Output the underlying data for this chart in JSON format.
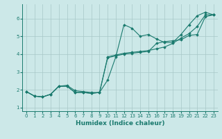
{
  "xlabel": "Humidex (Indice chaleur)",
  "x": [
    0,
    1,
    2,
    3,
    4,
    5,
    6,
    7,
    8,
    9,
    10,
    11,
    12,
    13,
    14,
    15,
    16,
    17,
    18,
    19,
    20,
    21,
    22,
    23
  ],
  "line1": [
    1.9,
    1.65,
    1.6,
    1.75,
    2.2,
    2.2,
    1.85,
    1.85,
    1.8,
    1.85,
    2.55,
    3.85,
    5.65,
    5.45,
    5.0,
    5.1,
    4.85,
    4.65,
    4.65,
    5.1,
    5.65,
    6.15,
    6.35,
    6.2
  ],
  "line2": [
    1.9,
    1.65,
    1.6,
    1.75,
    2.2,
    2.25,
    1.95,
    1.9,
    1.85,
    1.85,
    3.85,
    3.95,
    4.05,
    4.1,
    4.15,
    4.2,
    4.3,
    4.4,
    4.6,
    4.9,
    5.15,
    5.55,
    6.2,
    6.2
  ],
  "line3": [
    1.9,
    1.65,
    1.6,
    1.75,
    2.2,
    2.2,
    1.85,
    1.85,
    1.8,
    1.85,
    3.8,
    3.9,
    4.0,
    4.05,
    4.1,
    4.15,
    4.6,
    4.7,
    4.75,
    4.8,
    5.05,
    5.1,
    6.1,
    6.2
  ],
  "line_color": "#1a7a6e",
  "bg_color": "#cce8e8",
  "grid_color": "#a8c8c8",
  "ylim": [
    0.8,
    6.8
  ],
  "xlim": [
    -0.5,
    23.5
  ],
  "yticks": [
    1,
    2,
    3,
    4,
    5,
    6
  ],
  "xticks": [
    0,
    1,
    2,
    3,
    4,
    5,
    6,
    7,
    8,
    9,
    10,
    11,
    12,
    13,
    14,
    15,
    16,
    17,
    18,
    19,
    20,
    21,
    22,
    23
  ],
  "tick_fontsize": 5.0,
  "xlabel_fontsize": 6.5,
  "marker": "D",
  "marker_size": 1.8,
  "linewidth": 0.8
}
